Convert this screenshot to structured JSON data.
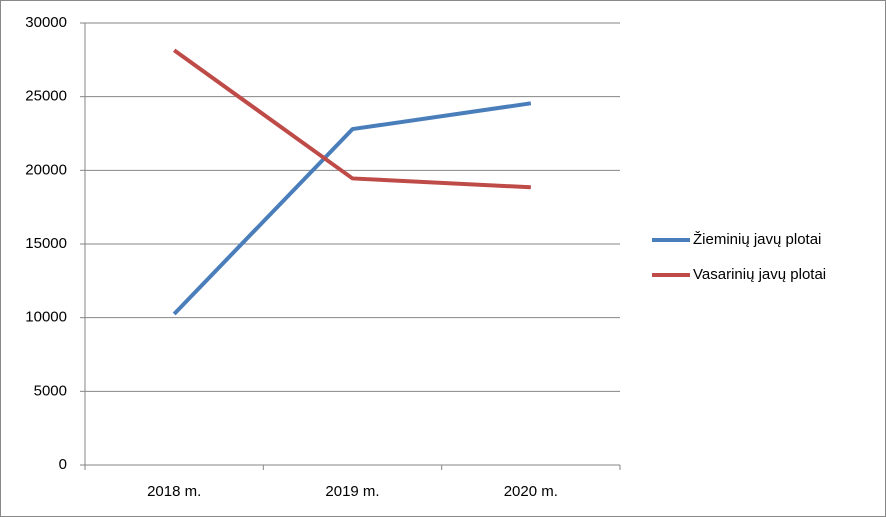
{
  "chart_data": {
    "type": "line",
    "categories": [
      "2018 m.",
      "2019 m.",
      "2020 m."
    ],
    "series": [
      {
        "name": "Žieminių javų plotai",
        "color": "#4a7ebb",
        "values": [
          10250,
          22800,
          24550
        ]
      },
      {
        "name": "Vasarinių javų plotai",
        "color": "#be4b48",
        "values": [
          28150,
          19450,
          18850
        ]
      }
    ],
    "ylim": [
      0,
      30000
    ],
    "yticks": [
      0,
      5000,
      10000,
      15000,
      20000,
      25000,
      30000
    ],
    "grid": true,
    "legend": "right"
  }
}
